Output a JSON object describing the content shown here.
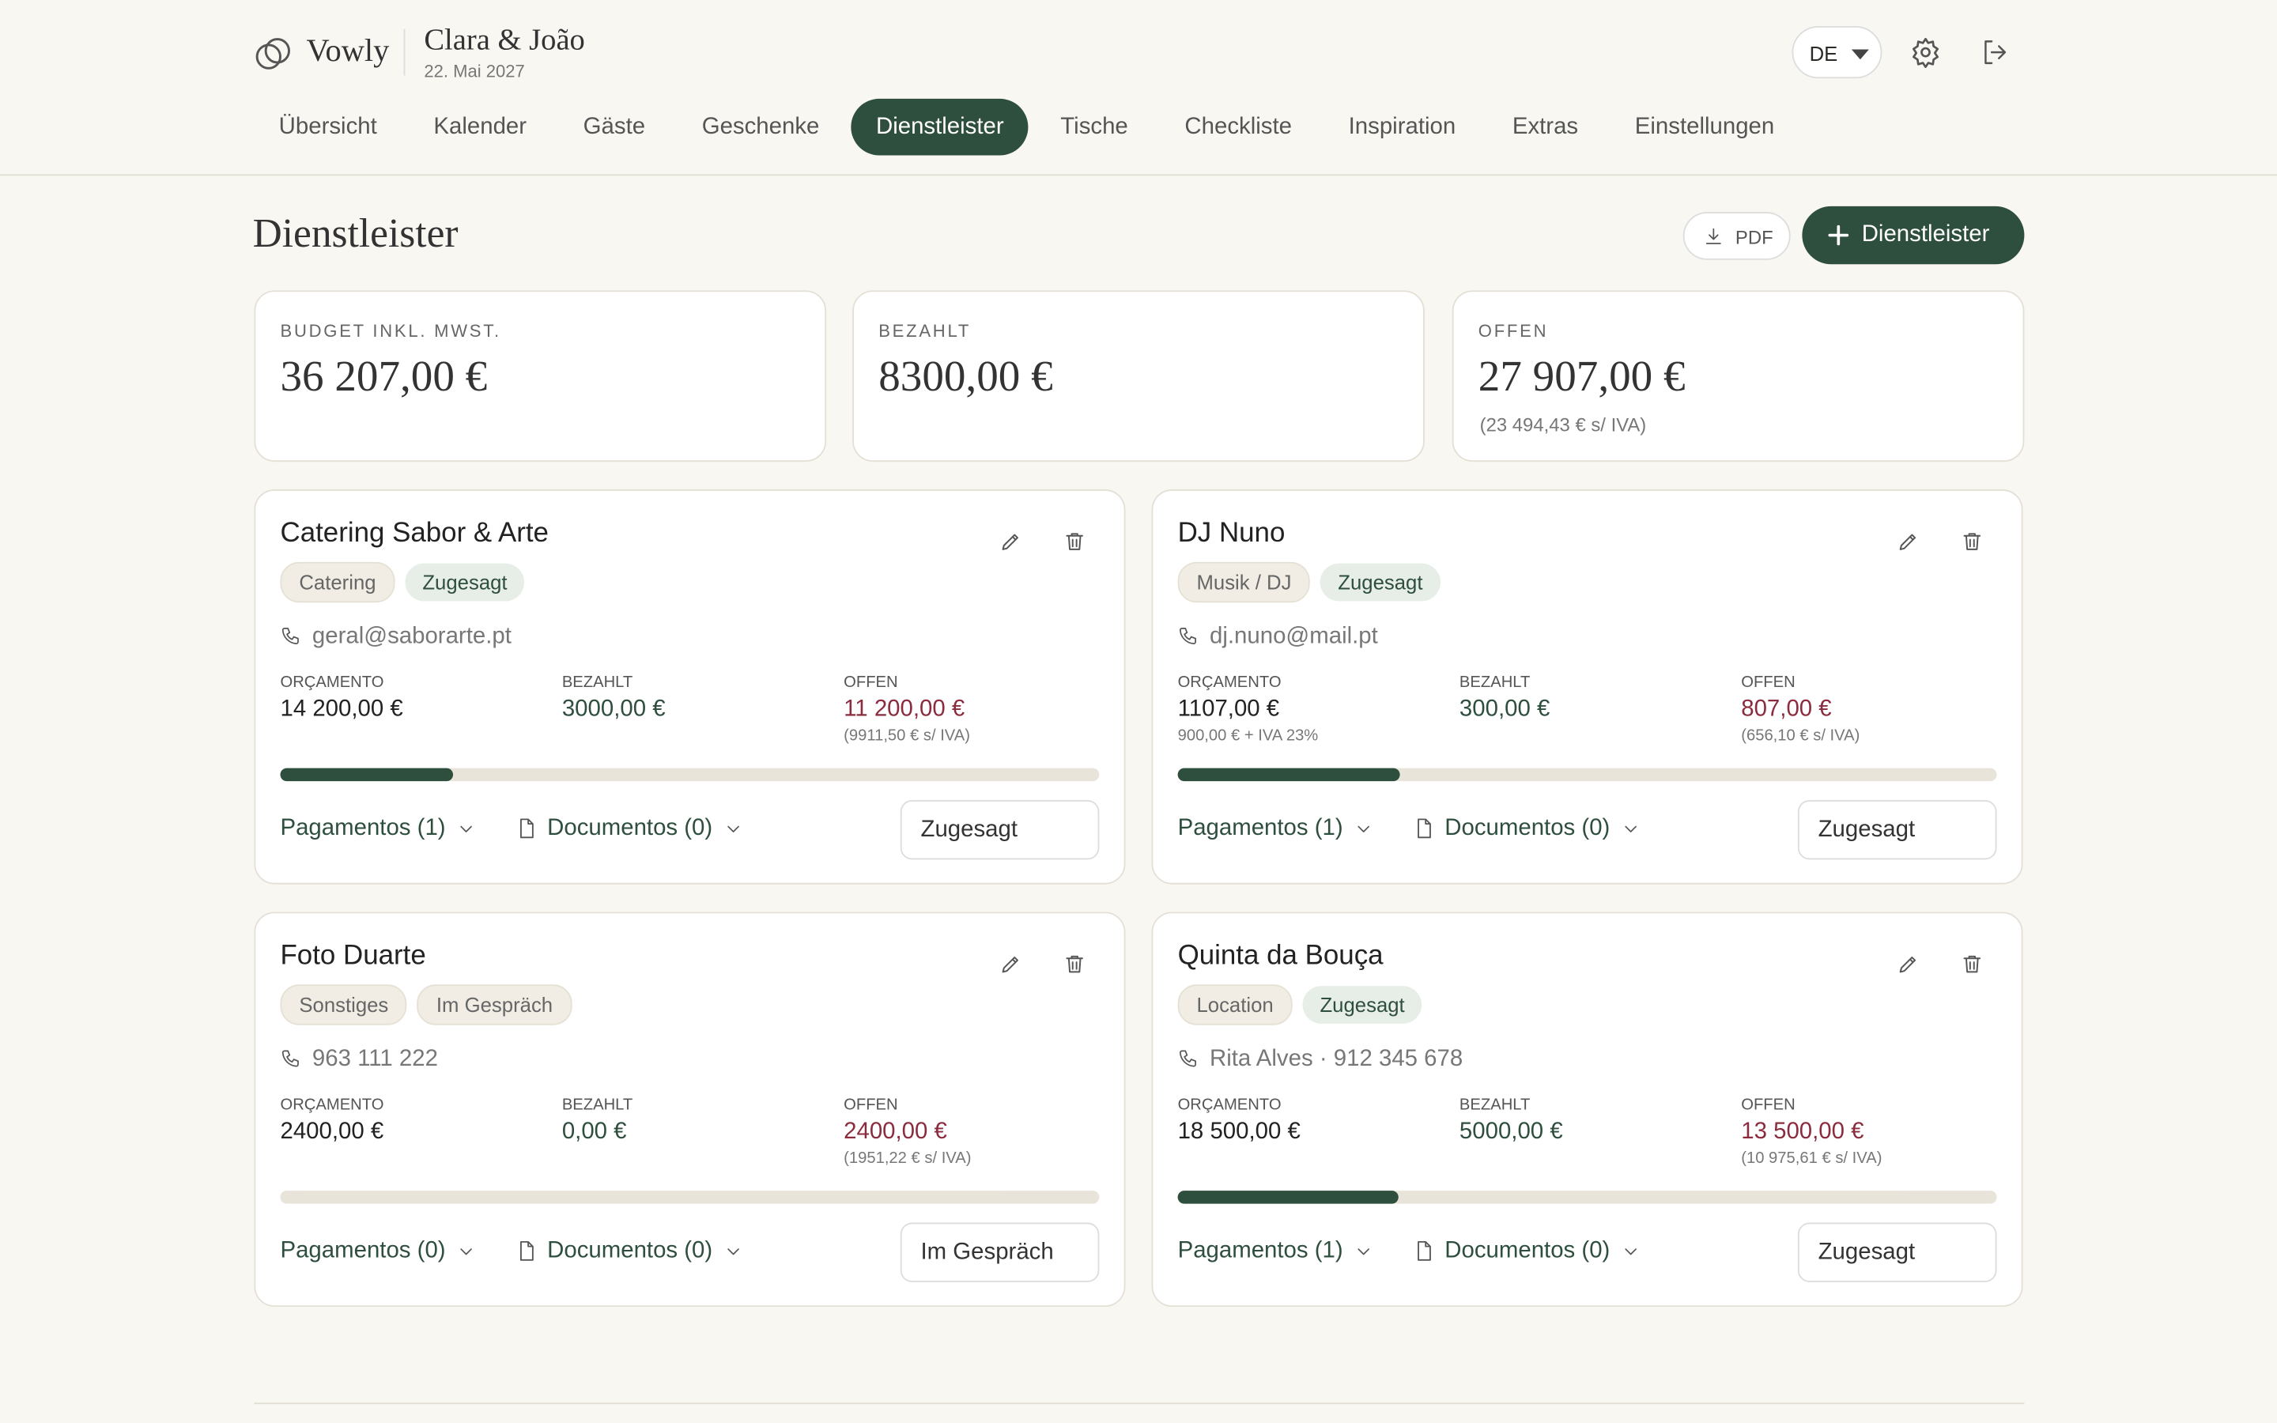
{
  "header": {
    "brand": "Vowly",
    "couple": "Clara & João",
    "date": "22. Mai 2027",
    "language": "DE"
  },
  "nav": {
    "items": [
      "Übersicht",
      "Kalender",
      "Gäste",
      "Geschenke",
      "Dienstleister",
      "Tische",
      "Checkliste",
      "Inspiration",
      "Extras",
      "Einstellungen"
    ],
    "active": 4
  },
  "page": {
    "title": "Dienstleister",
    "pdf_button": "PDF",
    "add_button": "Dienstleister"
  },
  "summary": [
    {
      "label": "BUDGET INKL. MWST.",
      "value": "36 207,00 €"
    },
    {
      "label": "BEZAHLT",
      "value": "8300,00 €"
    },
    {
      "label": "OFFEN",
      "value": "27 907,00 €",
      "note": "(23 494,43 € s/ IVA)"
    }
  ],
  "vendors": [
    {
      "name": "Catering Sabor & Arte",
      "category": "Catering",
      "status": "Zugesagt",
      "contact": "geral@saborarte.pt",
      "stats": [
        {
          "label": "ORÇAMENTO",
          "value": "14 200,00 €"
        },
        {
          "label": "BEZAHLT",
          "value": "3000,00 €"
        },
        {
          "label": "OFFEN",
          "value": "11 200,00 €",
          "note": "(9911,50 € s/ IVA)"
        }
      ],
      "progress": 21.1,
      "payments": "Pagamentos (1)",
      "documents": "Documentos (0)",
      "status_select": "Zugesagt"
    },
    {
      "name": "DJ Nuno",
      "category": "Musik / DJ",
      "status": "Zugesagt",
      "contact": "dj.nuno@mail.pt",
      "stats": [
        {
          "label": "ORÇAMENTO",
          "value": "1107,00 €",
          "note": "900,00 € + IVA 23%"
        },
        {
          "label": "BEZAHLT",
          "value": "300,00 €"
        },
        {
          "label": "OFFEN",
          "value": "807,00 €",
          "note": "(656,10 € s/ IVA)"
        }
      ],
      "progress": 27.1,
      "payments": "Pagamentos (1)",
      "documents": "Documentos (0)",
      "status_select": "Zugesagt"
    },
    {
      "name": "Foto Duarte",
      "category": "Sonstiges",
      "status": "Im Gespräch",
      "contact": "963 111 222",
      "stats": [
        {
          "label": "ORÇAMENTO",
          "value": "2400,00 €"
        },
        {
          "label": "BEZAHLT",
          "value": "0,00 €"
        },
        {
          "label": "OFFEN",
          "value": "2400,00 €",
          "note": "(1951,22 € s/ IVA)"
        }
      ],
      "progress": 0,
      "payments": "Pagamentos (0)",
      "documents": "Documentos (0)",
      "status_select": "Im Gespräch"
    },
    {
      "name": "Quinta da Bouça",
      "category": "Location",
      "status": "Zugesagt",
      "contact": "Rita Alves · 912 345 678",
      "stats": [
        {
          "label": "ORÇAMENTO",
          "value": "18 500,00 €"
        },
        {
          "label": "BEZAHLT",
          "value": "5000,00 €"
        },
        {
          "label": "OFFEN",
          "value": "13 500,00 €",
          "note": "(10 975,61 € s/ IVA)"
        }
      ],
      "progress": 27,
      "payments": "Pagamentos (1)",
      "documents": "Documentos (0)",
      "status_select": "Zugesagt"
    }
  ]
}
